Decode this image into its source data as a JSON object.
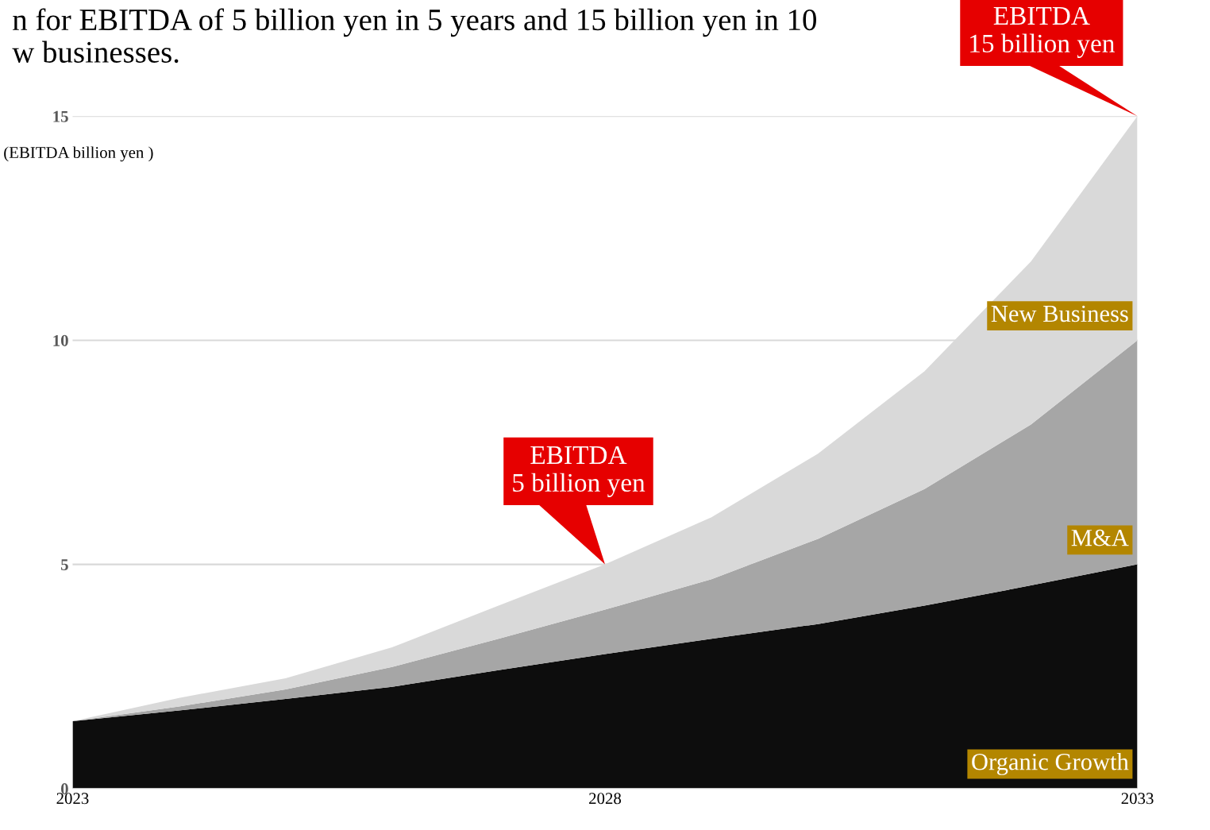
{
  "chart_data": {
    "type": "area",
    "stacked": true,
    "title": "n for EBITDA of 5 billion yen in 5 years and 15 billion yen in 10\nw businesses.",
    "ylabel": "(EBITDA billion yen )",
    "x": [
      2023,
      2024,
      2025,
      2026,
      2027,
      2028,
      2029,
      2030,
      2031,
      2032,
      2033
    ],
    "series": [
      {
        "name": "Organic Growth",
        "color": "#0d0d0d",
        "values": [
          1.5,
          1.74,
          2.0,
          2.27,
          2.64,
          3.0,
          3.34,
          3.67,
          4.08,
          4.53,
          5.0
        ]
      },
      {
        "name": "M&A",
        "color": "#a6a6a6",
        "values": [
          0,
          0.09,
          0.21,
          0.44,
          0.7,
          0.99,
          1.33,
          1.9,
          2.6,
          3.59,
          5.0
        ]
      },
      {
        "name": "New Business",
        "color": "#d9d9d9",
        "values": [
          0,
          0.19,
          0.25,
          0.44,
          0.74,
          1.01,
          1.38,
          1.9,
          2.63,
          3.64,
          5.0
        ]
      }
    ],
    "xlim": [
      2023,
      2033
    ],
    "xticks": [
      2023,
      2028,
      2033
    ],
    "ylim": [
      0,
      15
    ],
    "yticks": [
      0,
      5,
      10,
      15
    ],
    "grid": "y",
    "legend": false,
    "annotations": [
      {
        "text": "EBITDA\n5 billion yen",
        "x": 2028,
        "y": 5
      },
      {
        "text": "EBITDA\n15 billion yen",
        "x": 2033,
        "y": 15
      }
    ]
  }
}
